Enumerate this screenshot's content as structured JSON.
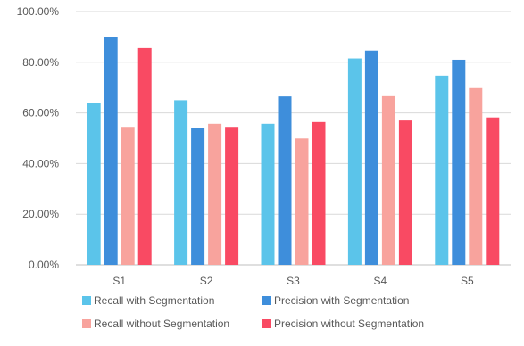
{
  "chart_data": {
    "type": "bar",
    "categories": [
      "S1",
      "S2",
      "S3",
      "S4",
      "S5"
    ],
    "series": [
      {
        "name": "Recall with Segmentation",
        "color": "#5BC4EA",
        "values": [
          64.0,
          65.0,
          55.7,
          81.5,
          74.7
        ]
      },
      {
        "name": "Precision with Segmentation",
        "color": "#3E8EDB",
        "values": [
          89.8,
          54.1,
          66.5,
          84.6,
          81.0
        ]
      },
      {
        "name": "Recall without Segmentation",
        "color": "#F8A39D",
        "values": [
          54.5,
          55.7,
          49.9,
          66.6,
          69.8
        ]
      },
      {
        "name": "Precision without Segmentation",
        "color": "#F94A63",
        "values": [
          85.6,
          54.5,
          56.4,
          57.0,
          58.2
        ]
      }
    ],
    "yticks": [
      "0.00%",
      "20.00%",
      "40.00%",
      "60.00%",
      "80.00%",
      "100.00%"
    ],
    "ylim": [
      0,
      100
    ],
    "grid": true,
    "legend_position": "bottom",
    "gridline_color": "#D9D9D9",
    "axis_color": "#BFBFBF",
    "text_color": "#595959"
  }
}
